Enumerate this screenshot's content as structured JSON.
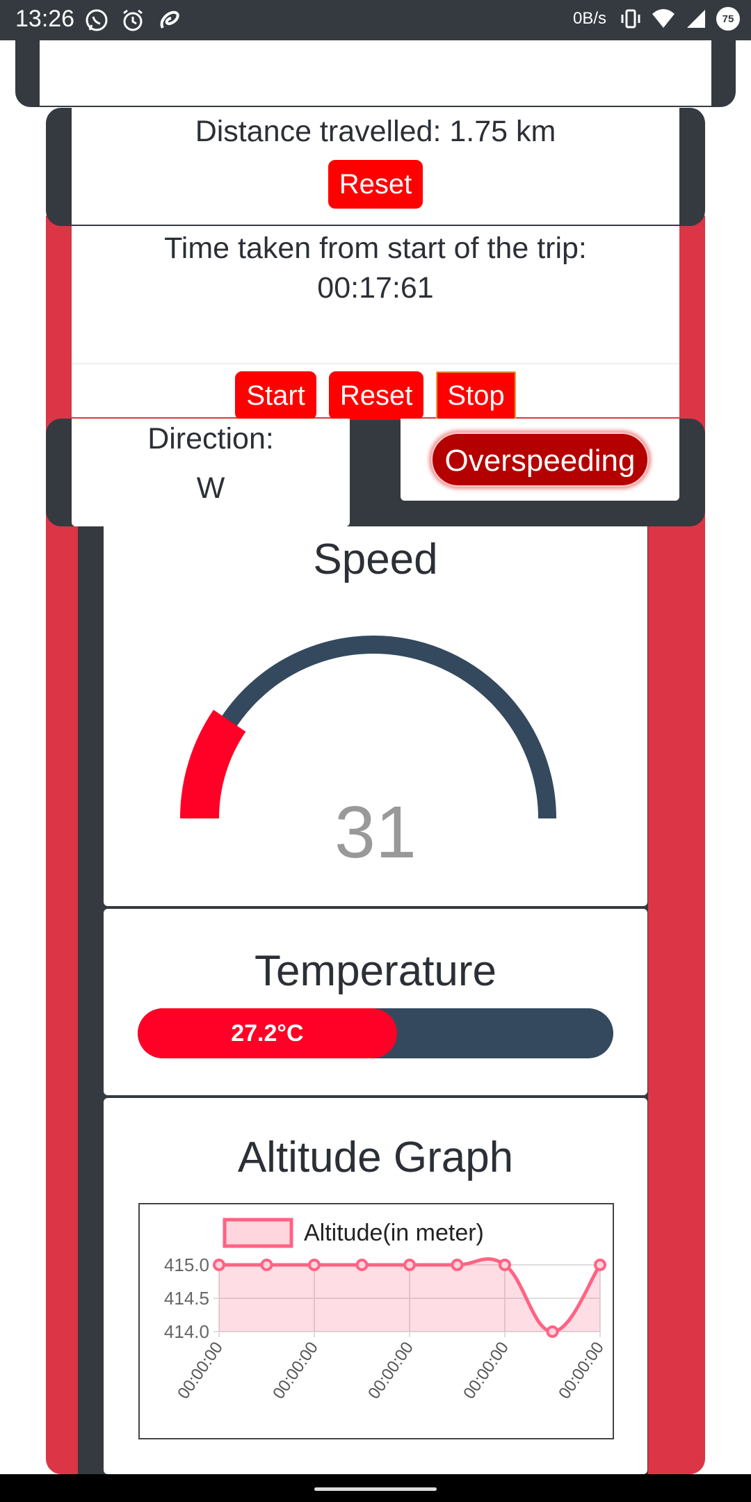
{
  "status_bar": {
    "time": "13:26",
    "speed": "0B/s",
    "battery": "75",
    "icons_left": [
      "whatsapp-icon",
      "alarm-icon",
      "airtel-icon"
    ],
    "icons_right": [
      "vibrate-icon",
      "wifi-icon",
      "signal-icon",
      "battery-icon"
    ]
  },
  "distance": {
    "text": "Distance travelled: 1.75 km",
    "reset_label": "Reset"
  },
  "timer": {
    "line1": "Time taken from start of the trip:",
    "line2": "00:17:61",
    "start_label": "Start",
    "reset_label": "Reset",
    "stop_label": "Stop"
  },
  "direction": {
    "label": "Direction:",
    "value": "W"
  },
  "overspeed": {
    "label": "Overspeeding"
  },
  "speed": {
    "title": "Speed",
    "value": "31",
    "fraction": 0.19
  },
  "temperature": {
    "title": "Temperature",
    "value_text": "27.2°C",
    "fill_fraction": 0.545
  },
  "altitude": {
    "title": "Altitude Graph"
  },
  "colors": {
    "accent_red": "#ff0026",
    "dark": "#343a40",
    "gauge_track": "#34495e",
    "chart_line": "#ff6384"
  },
  "chart_data": {
    "type": "line",
    "legend": "Altitude(in meter)",
    "x": [
      "00:00:00",
      "00:00:00",
      "00:00:00",
      "00:00:00",
      "00:00:00",
      "00:00:00",
      "00:00:00",
      "00:00:00",
      "00:00:00"
    ],
    "x_tick_labels": [
      "00:00:00",
      "00:00:00",
      "00:00:00",
      "00:00:00",
      "00:00:00"
    ],
    "series": [
      {
        "name": "Altitude(in meter)",
        "values": [
          415.0,
          415.0,
          415.0,
          415.0,
          415.0,
          415.0,
          415.0,
          414.0,
          415.0
        ]
      }
    ],
    "y_ticks": [
      "415.0",
      "414.5",
      "414.0"
    ],
    "ylim": [
      414.0,
      415.0
    ],
    "grid": true,
    "legend_position": "top",
    "fill": true
  }
}
